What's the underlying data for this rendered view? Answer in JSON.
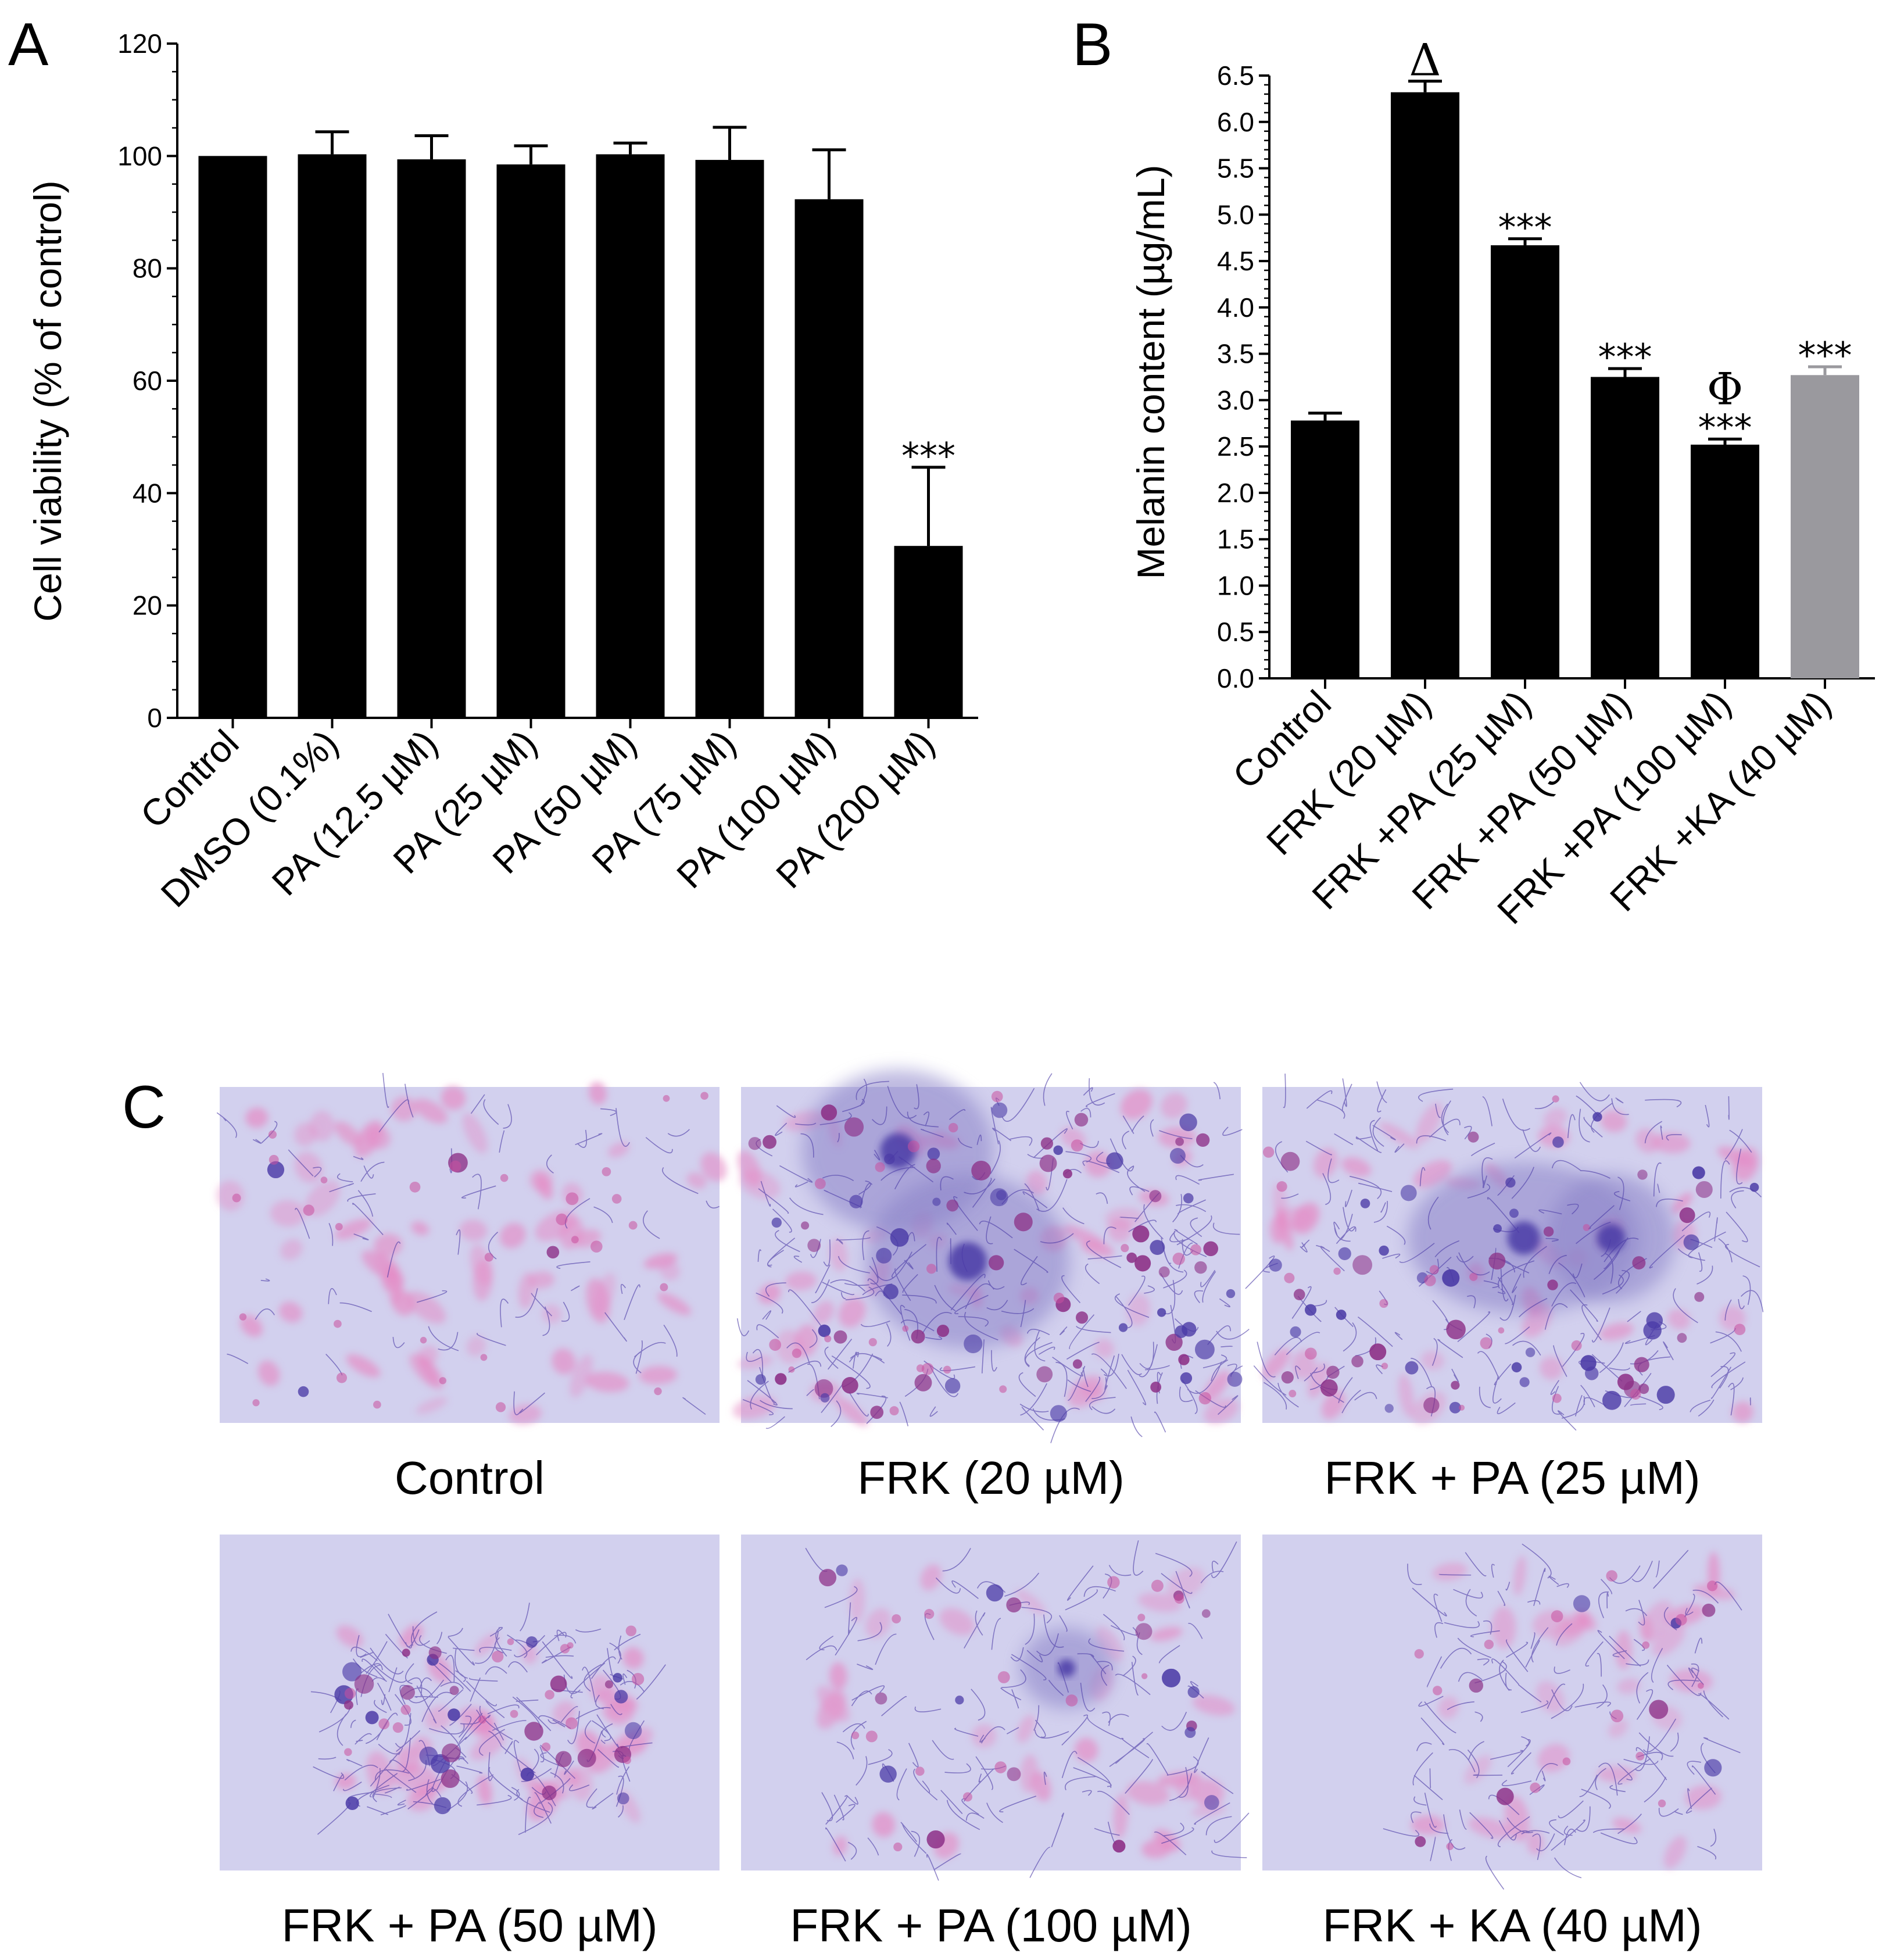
{
  "figure": {
    "panel_labels": [
      "A",
      "B",
      "C"
    ],
    "micrographs": [
      {
        "caption": "Control",
        "stain": "sparse pink spindle cells, lightly stained"
      },
      {
        "caption": "FRK (20 µM)",
        "stain": "dense dark blue-purple melanin deposits"
      },
      {
        "caption": "FRK + PA (25 µM)",
        "stain": "heavy blue-purple staining"
      },
      {
        "caption": "FRK + PA (50 µM)",
        "stain": "cell cluster with moderate blue staining"
      },
      {
        "caption": "FRK + PA (100 µM)",
        "stain": "pink cells with some blue fibres"
      },
      {
        "caption": "FRK + KA (40 µM)",
        "stain": "pink cells with light blue network"
      }
    ]
  },
  "colors": {
    "bar": "#000000",
    "bar_reference": "#9a999e",
    "micrograph_background": "#d2d0ee",
    "pink_stain": "#e58ac4",
    "blue_stain": "#4a3aa6"
  },
  "chart_data": [
    {
      "panel": "A",
      "type": "bar",
      "title": "",
      "xlabel": "",
      "ylabel": "Cell viability (% of control)",
      "ylim": [
        0,
        120
      ],
      "yticks": [
        0,
        20,
        40,
        60,
        80,
        100,
        120
      ],
      "categories": [
        "Control",
        "DMSO (0.1%)",
        "PA (12.5 µM)",
        "PA (25 µM)",
        "PA (50 µM)",
        "PA (75 µM)",
        "PA (100 µM)",
        "PA (200 µM)"
      ],
      "values": [
        100,
        100.3,
        99.4,
        98.5,
        100.3,
        99.3,
        92.3,
        30.6
      ],
      "errors": [
        0,
        4,
        4.2,
        3.3,
        2,
        5.8,
        8.8,
        14
      ],
      "annotations": [
        "",
        "",
        "",
        "",
        "",
        "",
        "",
        "***"
      ],
      "bar_colors": [
        "#000000",
        "#000000",
        "#000000",
        "#000000",
        "#000000",
        "#000000",
        "#000000",
        "#000000"
      ],
      "grid": false
    },
    {
      "panel": "B",
      "type": "bar",
      "title": "",
      "xlabel": "",
      "ylabel": "Melanin content (µg/mL)",
      "ylim": [
        0,
        6.5
      ],
      "yticks": [
        "0.0",
        "0.5",
        "1.0",
        "1.5",
        "2.0",
        "2.5",
        "3.0",
        "3.5",
        "4.0",
        "4.5",
        "5.0",
        "5.5",
        "6.0",
        "6.5"
      ],
      "categories": [
        "Control",
        "FRK (20 µM)",
        "FRK +PA (25 µM)",
        "FRK +PA (50 µM)",
        "FRK +PA (100 µM)",
        "FRK +KA (40 µM)"
      ],
      "values": [
        2.78,
        6.32,
        4.67,
        3.25,
        2.52,
        3.27
      ],
      "errors": [
        0.08,
        0.12,
        0.07,
        0.09,
        0.06,
        0.09
      ],
      "annotations": [
        "",
        "",
        "***",
        "***",
        "***",
        "***"
      ],
      "symbols": [
        "",
        "Δ",
        "",
        "",
        "Φ",
        ""
      ],
      "bar_colors": [
        "#000000",
        "#000000",
        "#000000",
        "#000000",
        "#000000",
        "#9a999e"
      ],
      "grid": false
    }
  ]
}
